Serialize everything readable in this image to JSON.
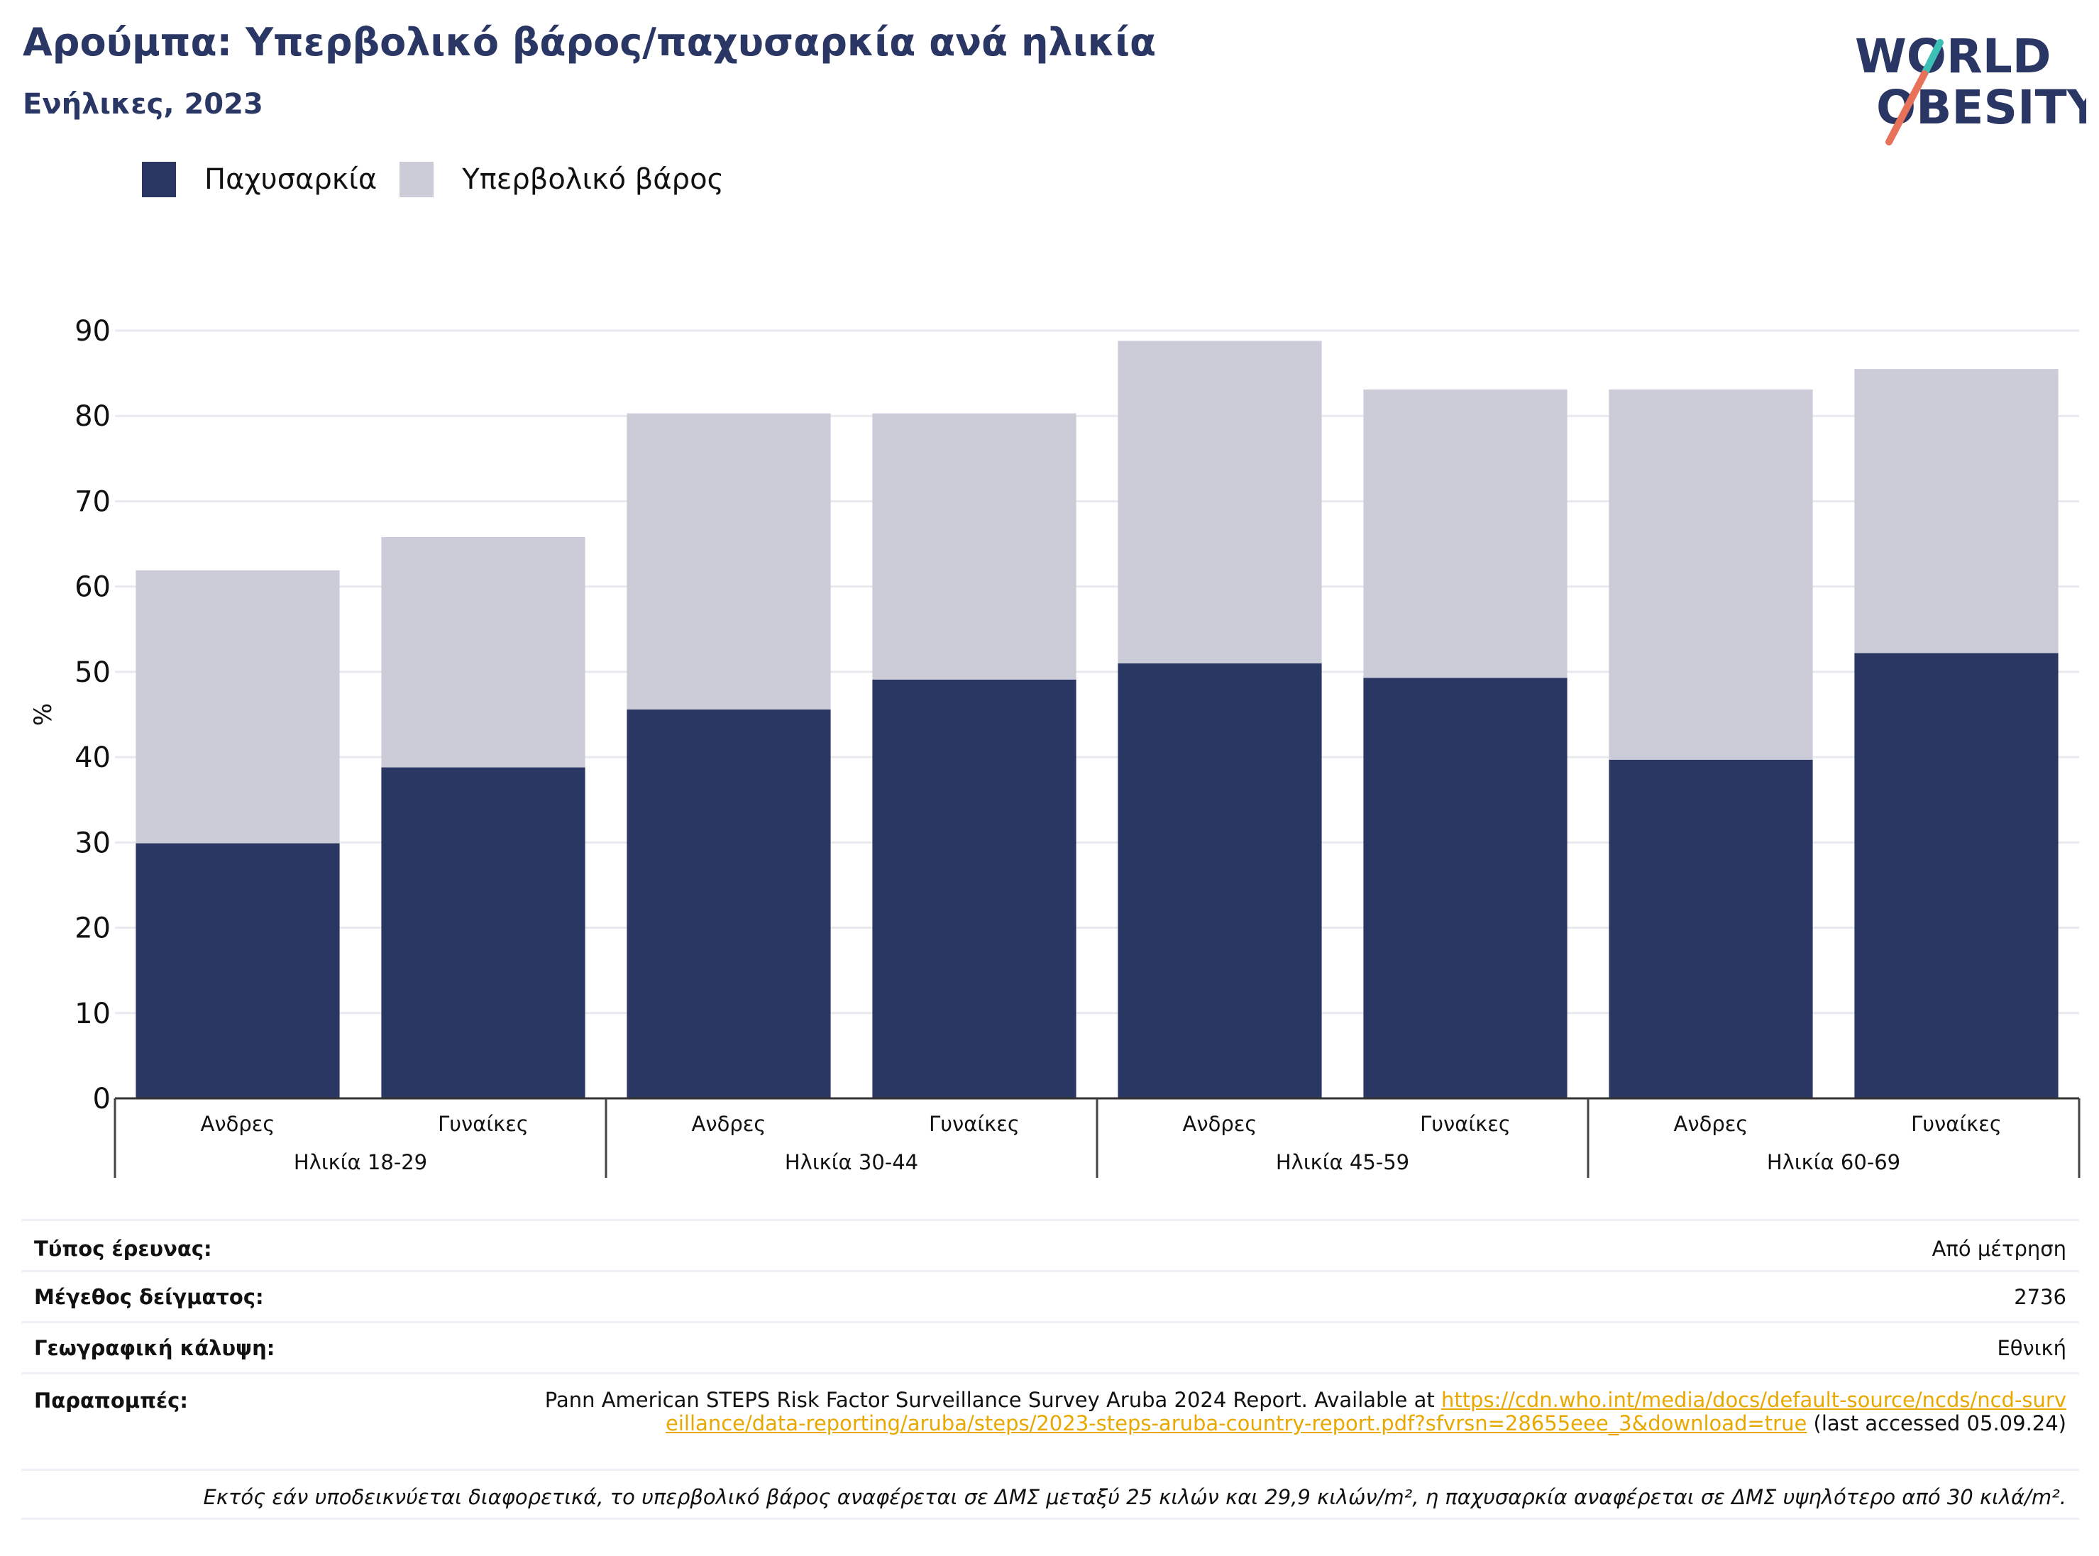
{
  "header": {
    "title": "Αρούμπα: Υπερβολικό βάρος/παχυσαρκία ανά ηλικία",
    "subtitle": "Ενήλικες, 2023"
  },
  "logo": {
    "line1": "WORLD",
    "line2": "OBESITY",
    "colors": {
      "text": "#2a3663",
      "slash_teal": "#3cbfb4",
      "slash_coral": "#e8715a"
    }
  },
  "legend": [
    {
      "label": "Παχυσαρκία",
      "color": "#2b3763"
    },
    {
      "label": "Υπερβολικό βάρος",
      "color": "#cbccd8"
    }
  ],
  "chart_data": {
    "type": "bar",
    "stacked": true,
    "ylabel": "%",
    "ylim": [
      0,
      90
    ],
    "yticks": [
      0,
      10,
      20,
      30,
      40,
      50,
      60,
      70,
      80,
      90
    ],
    "grid": true,
    "legend_position": "top-left",
    "categories": [
      "Ανδρες",
      "Γυναίκες",
      "Ανδρες",
      "Γυναίκες",
      "Ανδρες",
      "Γυναίκες",
      "Ανδρες",
      "Γυναίκες"
    ],
    "groups": [
      {
        "label": "Ηλικία 18-29",
        "categories": [
          0,
          1
        ]
      },
      {
        "label": "Ηλικία 30-44",
        "categories": [
          2,
          3
        ]
      },
      {
        "label": "Ηλικία 45-59",
        "categories": [
          4,
          5
        ]
      },
      {
        "label": "Ηλικία 60-69",
        "categories": [
          6,
          7
        ]
      }
    ],
    "series": [
      {
        "name": "Παχυσαρκία",
        "color": "#2b3763",
        "values": [
          29.9,
          38.8,
          45.6,
          49.1,
          51.0,
          49.3,
          39.7,
          52.2
        ]
      },
      {
        "name": "Υπερβολικό βάρος",
        "color": "#cbccd8",
        "values": [
          32.0,
          27.0,
          34.7,
          31.2,
          37.8,
          33.8,
          43.4,
          33.3
        ]
      }
    ]
  },
  "info": {
    "survey_type_label": "Τύπος έρευνας:",
    "survey_type_value": "Από μέτρηση",
    "sample_size_label": "Μέγεθος δείγματος:",
    "sample_size_value": "2736",
    "coverage_label": "Γεωγραφική κάλυψη:",
    "coverage_value": "Εθνική",
    "references_label": "Παραπομπές:",
    "references_text": "Pann American STEPS Risk Factor Surveillance Survey Aruba 2024 Report. Available at ",
    "references_link": "https://cdn.who.int/media/docs/default-source/ncds/ncd-surveillance/data-reporting/aruba/steps/2023-steps-aruba-country-report.pdf?sfvrsn=28655eee_3&download=true",
    "references_suffix": " (last accessed 05.09.24)",
    "note": "Εκτός εάν υποδεικνύεται διαφορετικά, το υπερβολικό βάρος αναφέρεται σε ΔΜΣ μεταξύ 25 κιλών και 29,9 κιλών/m², η παχυσαρκία αναφέρεται σε ΔΜΣ υψηλότερο από 30 κιλά/m²."
  }
}
